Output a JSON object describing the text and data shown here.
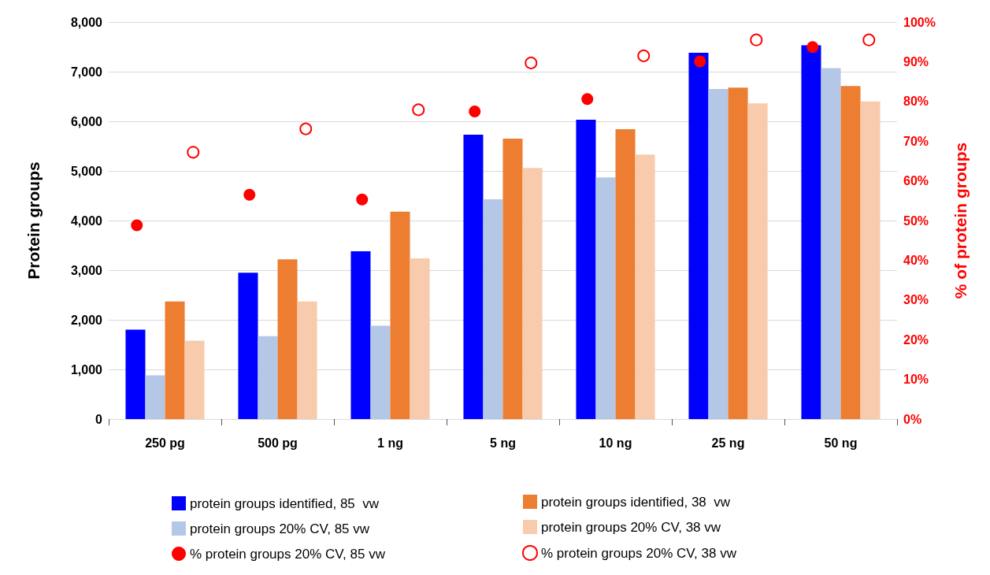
{
  "chart_data": {
    "type": "bar",
    "ylabel": "Protein groups",
    "y2label": "% of protein groups",
    "categories": [
      "250 pg",
      "500 pg",
      "1 ng",
      "5 ng",
      "10 ng",
      "25 ng",
      "50 ng"
    ],
    "series": [
      {
        "name": "protein groups identified, 85  vw",
        "color": "#0000ff",
        "values": [
          1800,
          2950,
          3380,
          5730,
          6030,
          7380,
          7530
        ]
      },
      {
        "name": "protein groups 20% CV, 85 vw",
        "color": "#b4c7e7",
        "values": [
          880,
          1670,
          1880,
          4430,
          4870,
          6650,
          7070
        ]
      },
      {
        "name": "protein groups identified, 38  vw",
        "color": "#ed7d31",
        "values": [
          2370,
          3220,
          4180,
          5650,
          5840,
          6680,
          6710
        ]
      },
      {
        "name": "protein groups 20% CV, 38 vw",
        "color": "#f8cbad",
        "values": [
          1580,
          2370,
          3240,
          5060,
          5330,
          6360,
          6400
        ]
      },
      {
        "name": "% protein groups 20% CV, 85 vw",
        "type": "scatter",
        "axis": "y2",
        "marker": "circle",
        "color": "#ff0000",
        "values": [
          48.8,
          56.5,
          55.3,
          77.5,
          80.6,
          90.1,
          93.7
        ]
      },
      {
        "name": "% protein groups 20% CV, 38 vw",
        "type": "scatter",
        "axis": "y2",
        "marker": "open circle",
        "color": "#ff0000",
        "values": [
          67.2,
          73.1,
          77.9,
          89.7,
          91.5,
          95.5,
          95.5
        ]
      }
    ],
    "ylim": [
      0,
      8000
    ],
    "yticks": [
      {
        "value": 0,
        "label": "0"
      },
      {
        "value": 1000,
        "label": "1,000"
      },
      {
        "value": 2000,
        "label": "2,000"
      },
      {
        "value": 3000,
        "label": "3,000"
      },
      {
        "value": 4000,
        "label": "4,000"
      },
      {
        "value": 5000,
        "label": "5,000"
      },
      {
        "value": 6000,
        "label": "6,000"
      },
      {
        "value": 7000,
        "label": "7,000"
      },
      {
        "value": 8000,
        "label": "8,000"
      }
    ],
    "y2lim": [
      0,
      100
    ],
    "y2ticks": [
      {
        "value": 0,
        "label": "0%"
      },
      {
        "value": 10,
        "label": "10%"
      },
      {
        "value": 20,
        "label": "20%"
      },
      {
        "value": 30,
        "label": "30%"
      },
      {
        "value": 40,
        "label": "40%"
      },
      {
        "value": 50,
        "label": "50%"
      },
      {
        "value": 60,
        "label": "60%"
      },
      {
        "value": 70,
        "label": "70%"
      },
      {
        "value": 80,
        "label": "80%"
      },
      {
        "value": 90,
        "label": "90%"
      },
      {
        "value": 100,
        "label": "100%"
      }
    ],
    "grid": "y",
    "legend": "bottom"
  }
}
